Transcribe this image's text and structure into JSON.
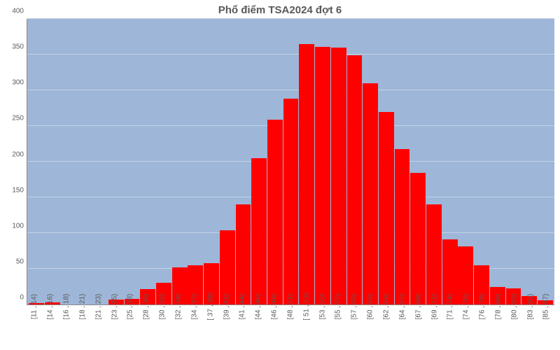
{
  "chart": {
    "type": "bar",
    "title": "Phổ điểm TSA2024 đợt 6",
    "title_fontsize": 15,
    "title_color": "#595959",
    "background_color": "#9eb6d8",
    "grid_color": "#c4d1e5",
    "plot_border_color": "#8a8a8a",
    "bar_color": "#ff0000",
    "bar_width": 0.96,
    "label_color": "#595959",
    "label_fontsize": 10,
    "ylim": [
      0,
      400
    ],
    "ytick_step": 50,
    "yticks": [
      0,
      50,
      100,
      150,
      200,
      250,
      300,
      350,
      400
    ],
    "categories": [
      "[11 , 14)",
      "[14 , 16)",
      "[16 , 18)",
      "[18 , 21)",
      "[21 , 23)",
      "[23 , 25)",
      "[25 , 28)",
      "[28 , 30)",
      "[30 , 32)",
      "[32 , 34)",
      "[34 , 37)",
      "[ 37 , 39)",
      "[39 , 41)",
      "[41 , 44)",
      "[44 , 46)",
      "[46 , 48)",
      "[48 , 51)",
      "[ 51 , 53)",
      "[53 , 55)",
      "[55 , 57)",
      "[57 , 60)",
      "[60 , 62)",
      "[62 , 64)",
      "[64 , 67)",
      "[67 , 69)",
      "[69 , 71)",
      "[71 , 74)",
      "[74 , 76)",
      "[76 , 78)",
      "[78 , 80)",
      "[80 , 83)",
      "[83 , 85)",
      "[85 , 87)"
    ],
    "values": [
      2,
      3,
      0,
      0,
      0,
      7,
      8,
      22,
      30,
      52,
      55,
      58,
      104,
      140,
      205,
      259,
      288,
      365,
      361,
      360,
      349,
      310,
      270,
      218,
      184,
      140,
      91,
      81,
      55,
      25,
      23,
      12,
      6
    ]
  }
}
